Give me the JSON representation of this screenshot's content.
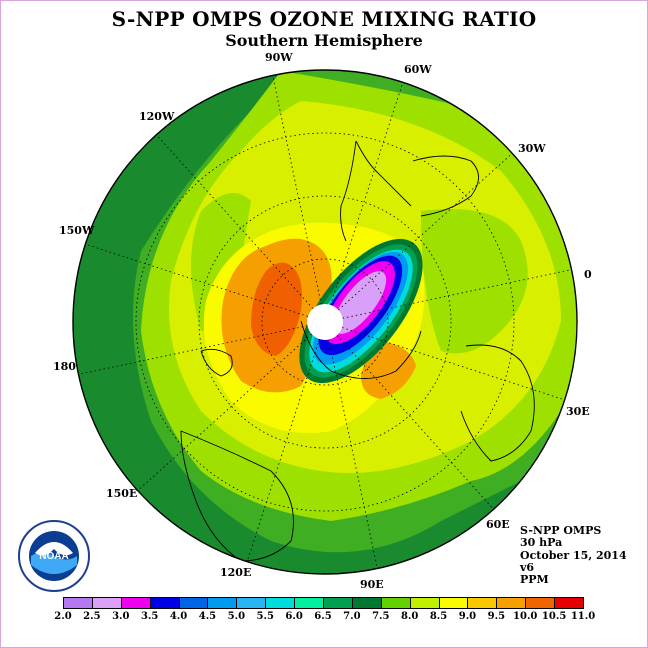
{
  "title": "S-NPP OMPS OZONE MIXING RATIO",
  "subtitle": "Southern Hemisphere",
  "longitude_labels": [
    "90W",
    "60W",
    "30W",
    "0",
    "30E",
    "60E",
    "90E",
    "120E",
    "150E",
    "180",
    "150W",
    "120W"
  ],
  "info": {
    "instrument": "S-NPP OMPS",
    "level": "30 hPa",
    "date": "October 15, 2014",
    "version": "v6",
    "units": "PPM"
  },
  "colorbar": {
    "labels": [
      "2.0",
      "2.5",
      "3.0",
      "3.5",
      "4.0",
      "4.5",
      "5.0",
      "5.5",
      "6.0",
      "6.5",
      "7.0",
      "7.5",
      "8.0",
      "8.5",
      "9.0",
      "9.5",
      "10.0",
      "10.5",
      "11.0"
    ],
    "colors": [
      "#b478f0",
      "#dca0f8",
      "#f000f0",
      "#0000e6",
      "#0064e6",
      "#009bf0",
      "#28b4f0",
      "#00dcdc",
      "#00f0a0",
      "#00a050",
      "#007830",
      "#64d200",
      "#bef000",
      "#fafa00",
      "#fac800",
      "#f5a000",
      "#f06400",
      "#e60000",
      "#9b5a3c"
    ]
  },
  "logo_text": "NOAA",
  "colors": {
    "frame_border": "#d9a6d9",
    "dark_green": "#1a8a2e",
    "mid_green": "#3fae23",
    "light_green": "#9ee000",
    "yellow_green": "#d8f000",
    "yellow": "#fbfb00",
    "orange": "#f59a00",
    "red_orange": "#f06000",
    "blue": "#0000e6",
    "magenta": "#f000f0",
    "lavender": "#d8a0f8"
  }
}
